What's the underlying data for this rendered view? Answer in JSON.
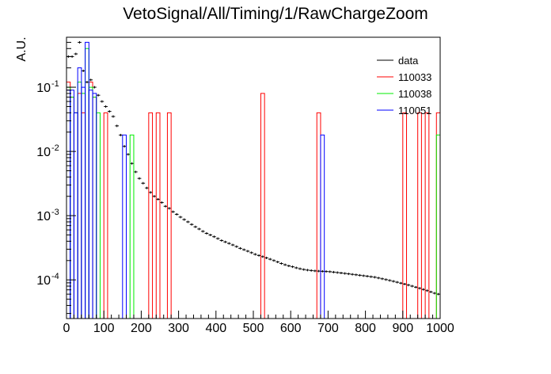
{
  "chart_data": {
    "type": "histogram",
    "title": "VetoSignal/All/Timing/1/RawChargeZoom",
    "xlabel": "",
    "ylabel": "A.U.",
    "xlim": [
      0,
      1000
    ],
    "ylim": [
      2.5e-05,
      0.6
    ],
    "yscale": "log",
    "grid": false,
    "legend_position": "top-right",
    "x_ticks": [
      0,
      100,
      200,
      300,
      400,
      500,
      600,
      700,
      800,
      900,
      1000
    ],
    "y_ticks": [
      {
        "value": 0.0001,
        "base": "10",
        "exp": "-4"
      },
      {
        "value": 0.001,
        "base": "10",
        "exp": "-3"
      },
      {
        "value": 0.01,
        "base": "10",
        "exp": "-2"
      },
      {
        "value": 0.1,
        "base": "10",
        "exp": "-1"
      }
    ],
    "bin_width": 10,
    "series": [
      {
        "name": "data",
        "color": "#000000",
        "style": "errorbar",
        "values": [
          0.3,
          0.3,
          0.33,
          0.5,
          0.18,
          0.12,
          0.13,
          0.1,
          0.075,
          0.06,
          0.05,
          0.042,
          0.035,
          0.025,
          0.018,
          0.012,
          0.009,
          0.0065,
          0.0048,
          0.0038,
          0.0032,
          0.0027,
          0.0023,
          0.002,
          0.0018,
          0.0016,
          0.0014,
          0.0013,
          0.00115,
          0.00105,
          0.00095,
          0.00087,
          0.0008,
          0.00073,
          0.00067,
          0.00062,
          0.00057,
          0.00053,
          0.0005,
          0.00047,
          0.00044,
          0.00041,
          0.00039,
          0.00037,
          0.00035,
          0.00033,
          0.00031,
          0.000295,
          0.00028,
          0.000265,
          0.00025,
          0.00024,
          0.00023,
          0.00022,
          0.00021,
          0.0002,
          0.00019,
          0.00018,
          0.000172,
          0.000165,
          0.00016,
          0.000154,
          0.000149,
          0.000145,
          0.000142,
          0.00014,
          0.000138,
          0.000137,
          0.000136,
          0.000135,
          0.000134,
          0.000132,
          0.00013,
          0.000128,
          0.000126,
          0.000124,
          0.000122,
          0.00012,
          0.000118,
          0.000116,
          0.000114,
          0.000112,
          0.00011,
          0.000107,
          0.000104,
          0.000101,
          9.8e-05,
          9.5e-05,
          9.2e-05,
          8.9e-05,
          8.6e-05,
          8.3e-05,
          8e-05,
          7.7e-05,
          7.4e-05,
          7.1e-05,
          6.8e-05,
          6.5e-05,
          6.2e-05,
          6e-05
        ]
      },
      {
        "name": "110033",
        "color": "#ff0000",
        "style": "step",
        "nonzero_bins": [
          [
            0,
            0.12
          ],
          [
            10,
            0.07
          ],
          [
            20,
            0.04
          ],
          [
            30,
            0.08
          ],
          [
            40,
            0.04
          ],
          [
            60,
            0.12
          ],
          [
            70,
            0.07
          ],
          [
            100,
            0.04
          ],
          [
            220,
            0.04
          ],
          [
            240,
            0.04
          ],
          [
            270,
            0.04
          ],
          [
            520,
            0.08
          ],
          [
            670,
            0.04
          ],
          [
            900,
            0.04
          ],
          [
            940,
            0.04
          ],
          [
            960,
            0.04
          ],
          [
            990,
            0.04
          ]
        ]
      },
      {
        "name": "110038",
        "color": "#00ee00",
        "style": "step",
        "nonzero_bins": [
          [
            0,
            0.1
          ],
          [
            10,
            0.07
          ],
          [
            20,
            0.04
          ],
          [
            30,
            0.12
          ],
          [
            40,
            0.08
          ],
          [
            50,
            0.4
          ],
          [
            60,
            0.1
          ],
          [
            70,
            0.07
          ],
          [
            80,
            0.04
          ],
          [
            170,
            0.018
          ],
          [
            990,
            0.018
          ]
        ]
      },
      {
        "name": "110051",
        "color": "#0000ff",
        "style": "step",
        "nonzero_bins": [
          [
            0,
            0.09
          ],
          [
            10,
            0.09
          ],
          [
            20,
            0.04
          ],
          [
            30,
            0.2
          ],
          [
            40,
            0.1
          ],
          [
            50,
            0.5
          ],
          [
            60,
            0.09
          ],
          [
            70,
            0.08
          ],
          [
            150,
            0.018
          ],
          [
            680,
            0.018
          ]
        ]
      }
    ]
  }
}
